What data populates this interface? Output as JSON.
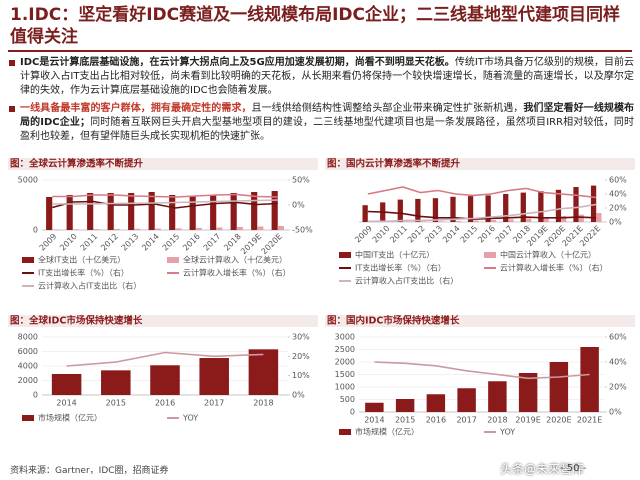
{
  "header": {
    "title": "1.IDC：坚定看好IDC赛道及一线规模布局IDC企业；二三线基地型代建项目同样值得关注"
  },
  "bullets": [
    {
      "runs": [
        {
          "text": "IDC是云计算底层基础设施，在云计算大拐点向上及5G应用加速发展初期，尚看不到明显天花板。",
          "style": "bold"
        },
        {
          "text": "传统IT市场具备万亿级别的规模，目前云计算收入占IT支出占比相对较低，尚未看到比较明确的天花板，从长期来看仍将保持一个较快增速增长，随着流量的高速增长，以及摩尔定律的失效，作为云计算底层基础设施的IDC也会随着发展。",
          "style": "normal"
        }
      ]
    },
    {
      "runs": [
        {
          "text": "一线具备最丰富的客户群体，拥有最确定性的需求，",
          "style": "red"
        },
        {
          "text": "且一线供给侧结构性调整给头部企业带来确定性扩张新机遇，",
          "style": "normal"
        },
        {
          "text": "我们坚定看好一线规模布局的IDC企业；",
          "style": "bold"
        },
        {
          "text": "同时随着互联网巨头开启大型基地型项目的建设，二三线基地型代建项目也是一条发展路径，虽然项目IRR相对较低，同时盈利也较差，但有望伴随巨头成长实现机柜的快速扩张。",
          "style": "normal"
        }
      ]
    }
  ],
  "chart_data": [
    {
      "type": "combo",
      "title": "图：全球云计算渗透率不断提升",
      "rotate_labels": true,
      "categories": [
        "2009",
        "2010",
        "2011",
        "2012",
        "2013",
        "2014",
        "2015",
        "2016",
        "2017",
        "2018",
        "2019E",
        "2020E"
      ],
      "ylim": [
        0,
        5000
      ],
      "yticks": [
        0,
        5000
      ],
      "y2lim": [
        -50,
        50
      ],
      "y2ticks": [
        {
          "value": 50,
          "label": "50%"
        },
        {
          "value": 0,
          "label": "0%"
        },
        {
          "value": -50,
          "label": "-50%"
        }
      ],
      "series": [
        {
          "name": "全球IT支出（十亿美元）",
          "kind": "bar",
          "axis": "y",
          "color": "#8b1a1a",
          "values": [
            3300,
            3500,
            3700,
            3700,
            3700,
            3800,
            3500,
            3400,
            3500,
            3700,
            3800,
            3900
          ]
        },
        {
          "name": "全球云计算收入（十亿美元）",
          "kind": "bar",
          "axis": "y",
          "color": "#e8a0a8",
          "values": [
            60,
            70,
            90,
            110,
            130,
            150,
            170,
            210,
            250,
            300,
            350,
            400
          ]
        },
        {
          "name": "IT支出增长率（%）（右）",
          "kind": "line",
          "axis": "y2",
          "color": "#6b1010",
          "values": [
            -5,
            6,
            7,
            0,
            0,
            2,
            -6,
            -1,
            3,
            5,
            1,
            3
          ]
        },
        {
          "name": "云计算收入增长率（%）（右）",
          "kind": "line",
          "axis": "y2",
          "color": "#d77a86",
          "values": [
            17,
            17,
            20,
            20,
            18,
            17,
            16,
            18,
            20,
            21,
            17,
            16
          ]
        },
        {
          "name": "云计算收入占IT支出比（右）",
          "kind": "line",
          "axis": "y2",
          "color": "#cfb5bb",
          "values": [
            2,
            2,
            2.5,
            3,
            3.5,
            4,
            5,
            6,
            7,
            8,
            9,
            10
          ]
        }
      ]
    },
    {
      "type": "combo",
      "title": "图：国内云计算渗透率不断提升",
      "rotate_labels": true,
      "categories": [
        "2009",
        "2010",
        "2011",
        "2012",
        "2013",
        "2014",
        "2015",
        "2016",
        "2017",
        "2018",
        "2019E",
        "2020E",
        "2021E",
        "2022E"
      ],
      "ylim": [
        0,
        3000
      ],
      "y2lim": [
        0,
        60
      ],
      "y2ticks": [
        {
          "value": 60,
          "label": "60%"
        },
        {
          "value": 40,
          "label": "40%"
        },
        {
          "value": 20,
          "label": "20%"
        },
        {
          "value": 0,
          "label": "0%"
        }
      ],
      "series": [
        {
          "name": "中国IT支出（十亿元）",
          "kind": "bar",
          "axis": "y",
          "color": "#8b1a1a",
          "values": [
            1200,
            1400,
            1600,
            1650,
            1700,
            1800,
            1850,
            1900,
            2000,
            2100,
            2200,
            2300,
            2500,
            2600
          ]
        },
        {
          "name": "中国云计算收入（十亿元）",
          "kind": "bar",
          "axis": "y",
          "color": "#e8a0a8",
          "values": [
            10,
            15,
            25,
            35,
            55,
            75,
            100,
            140,
            190,
            260,
            340,
            430,
            530,
            640
          ]
        },
        {
          "name": "IT支出增长率（%）（右）",
          "kind": "line",
          "axis": "y2",
          "color": "#6b1010",
          "values": [
            15,
            14,
            12,
            8,
            6,
            6,
            4,
            5,
            6,
            7,
            6,
            6,
            7,
            6
          ]
        },
        {
          "name": "云计算收入增长率（%）（右）",
          "kind": "line",
          "axis": "y2",
          "color": "#d77a86",
          "values": [
            40,
            45,
            50,
            42,
            45,
            40,
            38,
            40,
            45,
            48,
            42,
            40,
            38,
            35
          ]
        },
        {
          "name": "云计算收入占IT支出比（右）",
          "kind": "line",
          "axis": "y2",
          "color": "#cfb5bb",
          "values": [
            1,
            1,
            2,
            2,
            3,
            4,
            5,
            7,
            9,
            12,
            15,
            19,
            21,
            25
          ]
        }
      ]
    },
    {
      "type": "combo",
      "title": "图：全球IDC市场保持快速增长",
      "rotate_labels": false,
      "categories": [
        "2014",
        "2015",
        "2016",
        "2017",
        "2018"
      ],
      "ylim": [
        0,
        8000
      ],
      "yticks": [
        0,
        2000,
        4000,
        6000,
        8000
      ],
      "y2lim": [
        0,
        30
      ],
      "y2ticks": [
        {
          "value": 0,
          "label": "0%"
        },
        {
          "value": 10,
          "label": "10%"
        },
        {
          "value": 20,
          "label": "20%"
        },
        {
          "value": 30,
          "label": "30%"
        }
      ],
      "series": [
        {
          "name": "市场规模（亿元）",
          "kind": "bar",
          "axis": "y",
          "color": "#8b1a1a",
          "values": [
            2900,
            3400,
            4100,
            5100,
            6300
          ]
        },
        {
          "name": "YOY",
          "kind": "line",
          "axis": "y2",
          "color": "#c99aa2",
          "values": [
            15,
            17,
            22,
            20,
            21
          ]
        }
      ]
    },
    {
      "type": "combo",
      "title": "图：国内IDC市场保持快速增长",
      "rotate_labels": false,
      "categories": [
        "2014",
        "2015",
        "2016",
        "2017",
        "2018",
        "2019E",
        "2020E",
        "2021E"
      ],
      "ylim": [
        0,
        3000
      ],
      "yticks": [
        0,
        500,
        1000,
        1500,
        2000,
        2500,
        3000
      ],
      "y2lim": [
        0,
        60
      ],
      "y2ticks": [
        {
          "value": 0,
          "label": "0%"
        },
        {
          "value": 20,
          "label": "20%"
        },
        {
          "value": 40,
          "label": "40%"
        },
        {
          "value": 60,
          "label": "60%"
        }
      ],
      "series": [
        {
          "name": "市场规模（亿元）",
          "kind": "bar",
          "axis": "y",
          "color": "#8b1a1a",
          "values": [
            370,
            520,
            710,
            950,
            1230,
            1560,
            2000,
            2600
          ]
        },
        {
          "name": "YOY",
          "kind": "line",
          "axis": "y2",
          "color": "#c99aa2",
          "values": [
            40,
            39,
            37,
            33,
            30,
            27,
            28,
            30
          ]
        }
      ]
    }
  ],
  "footer": {
    "source": "资料来源：Gartner，IDC圈，招商证券",
    "page": "- 50 -",
    "watermark": "头条@未来智库"
  }
}
